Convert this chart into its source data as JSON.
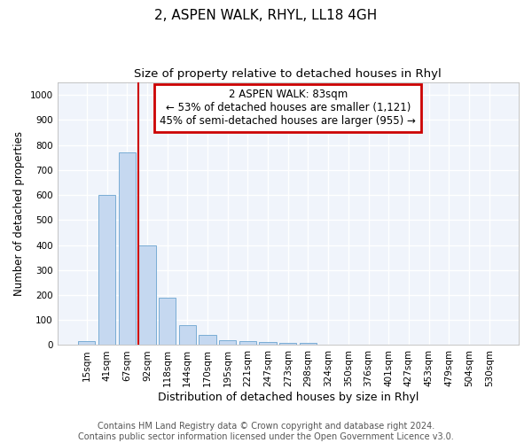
{
  "title": "2, ASPEN WALK, RHYL, LL18 4GH",
  "subtitle": "Size of property relative to detached houses in Rhyl",
  "xlabel": "Distribution of detached houses by size in Rhyl",
  "ylabel": "Number of detached properties",
  "footer_line1": "Contains HM Land Registry data © Crown copyright and database right 2024.",
  "footer_line2": "Contains public sector information licensed under the Open Government Licence v3.0.",
  "bar_labels": [
    "15sqm",
    "41sqm",
    "67sqm",
    "92sqm",
    "118sqm",
    "144sqm",
    "170sqm",
    "195sqm",
    "221sqm",
    "247sqm",
    "273sqm",
    "298sqm",
    "324sqm",
    "350sqm",
    "376sqm",
    "401sqm",
    "427sqm",
    "453sqm",
    "479sqm",
    "504sqm",
    "530sqm"
  ],
  "bar_values": [
    15,
    600,
    770,
    400,
    190,
    78,
    40,
    20,
    15,
    12,
    10,
    8,
    0,
    0,
    0,
    0,
    0,
    0,
    0,
    0,
    0
  ],
  "bar_color": "#c5d8f0",
  "bar_edge_color": "#7aadd4",
  "background_color": "#ffffff",
  "axes_background": "#f0f4fb",
  "grid_color": "#ffffff",
  "annotation_text": "2 ASPEN WALK: 83sqm\n← 53% of detached houses are smaller (1,121)\n45% of semi-detached houses are larger (955) →",
  "vline_x": 2.55,
  "vline_color": "#cc0000",
  "annotation_box_color": "#cc0000",
  "ylim": [
    0,
    1050
  ],
  "yticks": [
    0,
    100,
    200,
    300,
    400,
    500,
    600,
    700,
    800,
    900,
    1000
  ],
  "title_fontsize": 11,
  "subtitle_fontsize": 9.5,
  "xlabel_fontsize": 9,
  "ylabel_fontsize": 8.5,
  "tick_fontsize": 7.5,
  "annotation_fontsize": 8.5,
  "footer_fontsize": 7
}
